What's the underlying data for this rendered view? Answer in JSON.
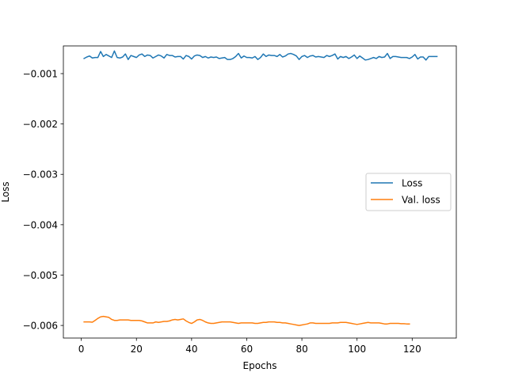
{
  "chart_data": {
    "type": "line",
    "xlabel": "Epochs",
    "ylabel": "Loss",
    "xlim": [
      -6.5,
      136
    ],
    "ylim": [
      -0.00625,
      -0.00045
    ],
    "xticks": [
      0,
      20,
      40,
      60,
      80,
      100,
      120
    ],
    "xtick_labels": [
      "0",
      "20",
      "40",
      "60",
      "80",
      "100",
      "120"
    ],
    "yticks": [
      -0.001,
      -0.002,
      -0.003,
      -0.004,
      -0.005,
      -0.006
    ],
    "ytick_labels": [
      "−0.001",
      "−0.002",
      "−0.003",
      "−0.004",
      "−0.005",
      "−0.006"
    ],
    "grid": false,
    "legend_position": "center-right",
    "x_start": 1,
    "x_step": 1,
    "series": [
      {
        "name": "Loss",
        "color": "#1f77b4",
        "values": [
          -0.0007,
          -0.00067,
          -0.00065,
          -0.00069,
          -0.00068,
          -0.00068,
          -0.00056,
          -0.00066,
          -0.00062,
          -0.00065,
          -0.00068,
          -0.00055,
          -0.00068,
          -0.00069,
          -0.00067,
          -0.00061,
          -0.00072,
          -0.00064,
          -0.00066,
          -0.00068,
          -0.00063,
          -0.00061,
          -0.00066,
          -0.00063,
          -0.00064,
          -0.00069,
          -0.00066,
          -0.00063,
          -0.00065,
          -0.00069,
          -0.00062,
          -0.00064,
          -0.00064,
          -0.00067,
          -0.00066,
          -0.00066,
          -0.00071,
          -0.00064,
          -0.00066,
          -0.00071,
          -0.00065,
          -0.00063,
          -0.00064,
          -0.00068,
          -0.00066,
          -0.00069,
          -0.00067,
          -0.00068,
          -0.00067,
          -0.0007,
          -0.00069,
          -0.00068,
          -0.00072,
          -0.00072,
          -0.0007,
          -0.00066,
          -0.0006,
          -0.00069,
          -0.00065,
          -0.00068,
          -0.00068,
          -0.00069,
          -0.00066,
          -0.00072,
          -0.00068,
          -0.00061,
          -0.00066,
          -0.00063,
          -0.00064,
          -0.00064,
          -0.00066,
          -0.00062,
          -0.00067,
          -0.00065,
          -0.00061,
          -0.0006,
          -0.00062,
          -0.00065,
          -0.00072,
          -0.00066,
          -0.00064,
          -0.00068,
          -0.00065,
          -0.00064,
          -0.00067,
          -0.00066,
          -0.00067,
          -0.00068,
          -0.00064,
          -0.00066,
          -0.00064,
          -0.00061,
          -0.00071,
          -0.00066,
          -0.00068,
          -0.00066,
          -0.0007,
          -0.00067,
          -0.00063,
          -0.0007,
          -0.00065,
          -0.00069,
          -0.00073,
          -0.00072,
          -0.0007,
          -0.00068,
          -0.0007,
          -0.00066,
          -0.00068,
          -0.00067,
          -0.0006,
          -0.0007,
          -0.00066,
          -0.00066,
          -0.00067,
          -0.00068,
          -0.00068,
          -0.00068,
          -0.0007,
          -0.00067,
          -0.00062,
          -0.00071,
          -0.00067,
          -0.00067,
          -0.00073,
          -0.00066,
          -0.00066,
          -0.00066,
          -0.00066
        ]
      },
      {
        "name": "Val. loss",
        "color": "#ff7f0e",
        "values": [
          -0.00593,
          -0.00593,
          -0.00593,
          -0.005935,
          -0.0059,
          -0.00586,
          -0.00583,
          -0.00582,
          -0.00583,
          -0.00584,
          -0.00588,
          -0.0059,
          -0.0059,
          -0.00589,
          -0.00589,
          -0.00589,
          -0.00589,
          -0.0059,
          -0.0059,
          -0.0059,
          -0.0059,
          -0.00591,
          -0.00593,
          -0.00595,
          -0.00595,
          -0.00595,
          -0.00593,
          -0.00594,
          -0.00593,
          -0.00592,
          -0.00592,
          -0.00591,
          -0.00589,
          -0.00588,
          -0.00589,
          -0.00588,
          -0.00587,
          -0.00591,
          -0.00594,
          -0.00596,
          -0.00593,
          -0.00589,
          -0.00588,
          -0.0059,
          -0.00593,
          -0.00595,
          -0.00596,
          -0.00596,
          -0.00595,
          -0.00594,
          -0.00593,
          -0.00593,
          -0.00593,
          -0.00593,
          -0.00594,
          -0.00595,
          -0.00596,
          -0.00595,
          -0.00595,
          -0.00595,
          -0.00595,
          -0.00595,
          -0.00596,
          -0.00596,
          -0.00595,
          -0.00594,
          -0.00594,
          -0.00593,
          -0.00593,
          -0.00593,
          -0.00594,
          -0.00594,
          -0.00595,
          -0.00595,
          -0.00596,
          -0.00597,
          -0.00598,
          -0.00599,
          -0.006,
          -0.00599,
          -0.00598,
          -0.00597,
          -0.00595,
          -0.00595,
          -0.00596,
          -0.00596,
          -0.00596,
          -0.00596,
          -0.00596,
          -0.00596,
          -0.00595,
          -0.00595,
          -0.00595,
          -0.00594,
          -0.00594,
          -0.00594,
          -0.00595,
          -0.00596,
          -0.00597,
          -0.00598,
          -0.00597,
          -0.00596,
          -0.00595,
          -0.00594,
          -0.00595,
          -0.00595,
          -0.00595,
          -0.00595,
          -0.00596,
          -0.00597,
          -0.00597,
          -0.00596,
          -0.00596,
          -0.00596,
          -0.00596,
          -0.005965,
          -0.005965,
          -0.00597,
          -0.00597
        ]
      }
    ]
  }
}
